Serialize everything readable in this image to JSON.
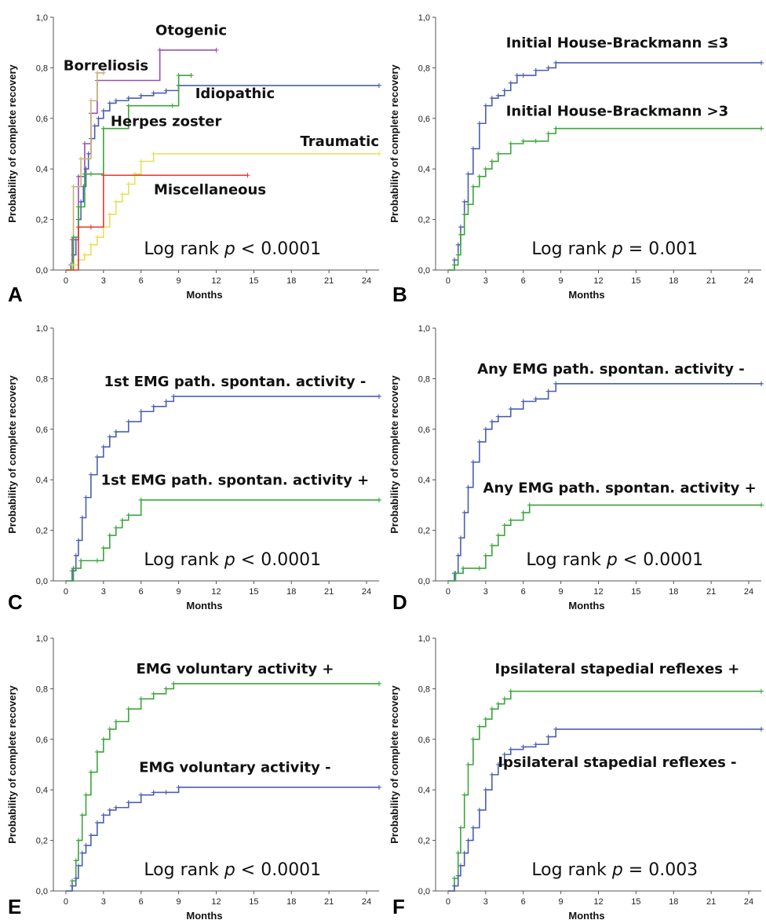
{
  "chart_data": [
    {
      "panel": "A",
      "type": "line",
      "xlabel": "Months",
      "ylabel": "Probability of complete recovery",
      "x_ticks": [
        "0",
        "3",
        "6",
        "9",
        "12",
        "15",
        "18",
        "21",
        "24"
      ],
      "y_ticks": [
        "0,0",
        "0,2",
        "0,4",
        "0,6",
        "0,8",
        "1,0"
      ],
      "xlim": [
        -1,
        25
      ],
      "ylim": [
        0,
        1
      ],
      "annotation": {
        "prefix": "Log rank ",
        "italic": "p",
        "suffix": " < 0.0001"
      },
      "series": [
        {
          "name": "Idiopathic",
          "color": "#4a5faf",
          "x": [
            0,
            0.4,
            0.6,
            0.8,
            1.0,
            1.2,
            1.4,
            1.6,
            1.8,
            2.0,
            2.3,
            2.6,
            3.0,
            3.5,
            4.0,
            5.0,
            6.0,
            7.0,
            8.0,
            9.0,
            25
          ],
          "y": [
            0,
            0.02,
            0.06,
            0.12,
            0.2,
            0.27,
            0.33,
            0.4,
            0.46,
            0.52,
            0.57,
            0.6,
            0.63,
            0.66,
            0.67,
            0.68,
            0.69,
            0.7,
            0.71,
            0.73,
            0.73
          ]
        },
        {
          "name": "Otogenic",
          "color": "#9a4fb0",
          "x": [
            0,
            0.5,
            1.0,
            1.5,
            2.0,
            2.5,
            7.5,
            12
          ],
          "y": [
            0,
            0.12,
            0.37,
            0.5,
            0.62,
            0.75,
            0.87,
            0.87
          ]
        },
        {
          "name": "Borreliosis",
          "color": "#c7b17a",
          "x": [
            0,
            0.6,
            1.2,
            2.0,
            2.5,
            3.0
          ],
          "y": [
            0,
            0.33,
            0.44,
            0.67,
            0.78,
            0.78
          ]
        },
        {
          "name": "Herpes zoster",
          "color": "#3ca43c",
          "x": [
            0,
            0.6,
            1.0,
            1.5,
            2.0,
            3.0,
            5.0,
            8.5,
            9.0,
            10
          ],
          "y": [
            0,
            0.13,
            0.25,
            0.38,
            0.38,
            0.56,
            0.65,
            0.65,
            0.77,
            0.77
          ]
        },
        {
          "name": "Traumatic",
          "color": "#e6e05a",
          "x": [
            0,
            0.5,
            1.0,
            1.5,
            2.0,
            2.5,
            3.0,
            3.5,
            4.0,
            4.5,
            5.0,
            5.5,
            6.0,
            7.0,
            25
          ],
          "y": [
            0,
            0.02,
            0.04,
            0.06,
            0.1,
            0.13,
            0.17,
            0.22,
            0.27,
            0.3,
            0.34,
            0.38,
            0.43,
            0.46,
            0.46
          ]
        },
        {
          "name": "Miscellaneous",
          "color": "#e23a2a",
          "x": [
            0,
            1.0,
            2.0,
            3.0,
            14.5
          ],
          "y": [
            0,
            0.17,
            0.17,
            0.375,
            0.375
          ]
        }
      ]
    },
    {
      "panel": "B",
      "type": "line",
      "xlabel": "Months",
      "ylabel": "Probability of complete recovery",
      "x_ticks": [
        "0",
        "3",
        "6",
        "9",
        "12",
        "15",
        "18",
        "21",
        "24"
      ],
      "y_ticks": [
        "0,0",
        "0,2",
        "0,4",
        "0,6",
        "0,8",
        "1,0"
      ],
      "xlim": [
        -1,
        25
      ],
      "ylim": [
        0,
        1
      ],
      "annotation": {
        "prefix": "Log rank ",
        "italic": "p",
        "suffix": " = 0.001"
      },
      "series": [
        {
          "name": "Initial House-Brackmann ≤3",
          "color": "#4a5faf",
          "x": [
            0,
            0.5,
            0.8,
            1.0,
            1.3,
            1.6,
            2.0,
            2.5,
            3.0,
            3.5,
            4.0,
            4.5,
            5.0,
            5.5,
            6.0,
            7.0,
            8.0,
            8.6,
            25
          ],
          "y": [
            0,
            0.04,
            0.1,
            0.17,
            0.27,
            0.38,
            0.48,
            0.58,
            0.65,
            0.68,
            0.69,
            0.71,
            0.74,
            0.77,
            0.77,
            0.79,
            0.8,
            0.82,
            0.82
          ]
        },
        {
          "name": "Initial House-Brackmann >3",
          "color": "#3ca43c",
          "x": [
            0,
            0.5,
            0.8,
            1.0,
            1.3,
            1.6,
            2.0,
            2.5,
            3.0,
            3.5,
            4.0,
            5.0,
            6.0,
            7.0,
            8.0,
            8.6,
            25
          ],
          "y": [
            0,
            0.02,
            0.06,
            0.14,
            0.22,
            0.26,
            0.33,
            0.37,
            0.4,
            0.43,
            0.46,
            0.5,
            0.51,
            0.51,
            0.54,
            0.56,
            0.56
          ]
        }
      ]
    },
    {
      "panel": "C",
      "type": "line",
      "xlabel": "Months",
      "ylabel": "Probability of complete recovery",
      "x_ticks": [
        "0",
        "3",
        "6",
        "9",
        "12",
        "15",
        "18",
        "21",
        "24"
      ],
      "y_ticks": [
        "0,0",
        "0,2",
        "0,4",
        "0,6",
        "0,8",
        "1,0"
      ],
      "xlim": [
        -1,
        25
      ],
      "ylim": [
        0,
        1
      ],
      "annotation": {
        "prefix": "Log rank ",
        "italic": "p",
        "suffix": " < 0.0001"
      },
      "series": [
        {
          "name": "1st EMG path. spontan. activity -",
          "color": "#4a5faf",
          "x": [
            0,
            0.5,
            0.8,
            1.0,
            1.3,
            1.6,
            2.0,
            2.5,
            3.0,
            3.5,
            4.0,
            5.0,
            6.0,
            7.0,
            8.0,
            8.6,
            25
          ],
          "y": [
            0,
            0.04,
            0.1,
            0.16,
            0.25,
            0.33,
            0.42,
            0.49,
            0.53,
            0.57,
            0.59,
            0.63,
            0.67,
            0.69,
            0.71,
            0.73,
            0.73
          ]
        },
        {
          "name": "1st EMG path. spontan. activity +",
          "color": "#3ca43c",
          "x": [
            0,
            0.6,
            1.2,
            2.5,
            3.0,
            3.5,
            4.0,
            4.5,
            5.0,
            6.0,
            25
          ],
          "y": [
            0,
            0.05,
            0.08,
            0.08,
            0.13,
            0.18,
            0.21,
            0.24,
            0.26,
            0.32,
            0.32
          ]
        }
      ]
    },
    {
      "panel": "D",
      "type": "line",
      "xlabel": "Months",
      "ylabel": "Probability of complete recovery",
      "x_ticks": [
        "0",
        "3",
        "6",
        "9",
        "12",
        "15",
        "18",
        "21",
        "24"
      ],
      "y_ticks": [
        "0,0",
        "0,2",
        "0,4",
        "0,6",
        "0,8",
        "1,0"
      ],
      "xlim": [
        -1,
        25
      ],
      "ylim": [
        0,
        1
      ],
      "annotation": {
        "prefix": "Log rank ",
        "italic": "p",
        "suffix": " < 0.0001"
      },
      "series": [
        {
          "name": "Any EMG path. spontan. activity -",
          "color": "#4a5faf",
          "x": [
            0,
            0.5,
            0.8,
            1.0,
            1.3,
            1.6,
            2.0,
            2.5,
            3.0,
            3.5,
            4.0,
            5.0,
            6.0,
            7.0,
            8.0,
            8.6,
            25
          ],
          "y": [
            0,
            0.03,
            0.1,
            0.17,
            0.27,
            0.37,
            0.47,
            0.55,
            0.6,
            0.63,
            0.65,
            0.68,
            0.71,
            0.72,
            0.75,
            0.78,
            0.78
          ]
        },
        {
          "name": "Any EMG path. spontan. activity +",
          "color": "#3ca43c",
          "x": [
            0,
            0.6,
            1.2,
            2.5,
            3.0,
            3.5,
            4.0,
            4.5,
            5.0,
            6.0,
            6.5,
            25
          ],
          "y": [
            0,
            0.03,
            0.05,
            0.05,
            0.1,
            0.14,
            0.18,
            0.22,
            0.24,
            0.27,
            0.3,
            0.3
          ]
        }
      ]
    },
    {
      "panel": "E",
      "type": "line",
      "xlabel": "Months",
      "ylabel": "Probability of complete recovery",
      "x_ticks": [
        "0",
        "3",
        "6",
        "9",
        "12",
        "15",
        "18",
        "21",
        "24"
      ],
      "y_ticks": [
        "0,0",
        "0,2",
        "0,4",
        "0,6",
        "0,8",
        "1,0"
      ],
      "xlim": [
        -1,
        25
      ],
      "ylim": [
        0,
        1
      ],
      "annotation": {
        "prefix": "Log rank ",
        "italic": "p",
        "suffix": " < 0.0001"
      },
      "series": [
        {
          "name": "EMG voluntary activity +",
          "color": "#3ca43c",
          "x": [
            0,
            0.5,
            0.8,
            1.0,
            1.3,
            1.6,
            2.0,
            2.5,
            3.0,
            3.5,
            4.0,
            5.0,
            6.0,
            7.0,
            8.0,
            8.6,
            25
          ],
          "y": [
            0,
            0.04,
            0.12,
            0.2,
            0.3,
            0.38,
            0.47,
            0.55,
            0.6,
            0.64,
            0.67,
            0.72,
            0.76,
            0.78,
            0.8,
            0.82,
            0.82
          ]
        },
        {
          "name": "EMG voluntary activity -",
          "color": "#4a5faf",
          "x": [
            0,
            0.5,
            0.8,
            1.0,
            1.3,
            1.6,
            2.0,
            2.5,
            3.0,
            3.5,
            4.0,
            5.0,
            6.0,
            7.0,
            8.0,
            9.0,
            25
          ],
          "y": [
            0,
            0.02,
            0.05,
            0.1,
            0.15,
            0.18,
            0.22,
            0.27,
            0.3,
            0.32,
            0.33,
            0.35,
            0.38,
            0.39,
            0.39,
            0.41,
            0.41
          ]
        }
      ]
    },
    {
      "panel": "F",
      "type": "line",
      "xlabel": "Months",
      "ylabel": "Probability of complete recovery",
      "x_ticks": [
        "0",
        "3",
        "6",
        "9",
        "12",
        "15",
        "18",
        "21",
        "24"
      ],
      "y_ticks": [
        "0,0",
        "0,2",
        "0,4",
        "0,6",
        "0,8",
        "1,0"
      ],
      "xlim": [
        -1,
        25
      ],
      "ylim": [
        0,
        1
      ],
      "annotation": {
        "prefix": "Log rank ",
        "italic": "p",
        "suffix": " = 0.003"
      },
      "series": [
        {
          "name": "Ipsilateral stapedial reflexes +",
          "color": "#3ca43c",
          "x": [
            0,
            0.5,
            0.8,
            1.0,
            1.3,
            1.6,
            2.0,
            2.5,
            3.0,
            3.5,
            4.0,
            4.5,
            5.0,
            25
          ],
          "y": [
            0,
            0.05,
            0.15,
            0.25,
            0.38,
            0.5,
            0.6,
            0.65,
            0.68,
            0.72,
            0.74,
            0.76,
            0.79,
            0.79
          ]
        },
        {
          "name": "Ipsilateral stapedial reflexes -",
          "color": "#4a5faf",
          "x": [
            0,
            0.5,
            0.8,
            1.0,
            1.3,
            1.6,
            2.0,
            2.5,
            3.0,
            3.5,
            4.0,
            4.5,
            5.0,
            6.0,
            7.0,
            8.0,
            8.6,
            25
          ],
          "y": [
            0,
            0.02,
            0.06,
            0.1,
            0.15,
            0.2,
            0.25,
            0.32,
            0.4,
            0.46,
            0.5,
            0.54,
            0.56,
            0.57,
            0.58,
            0.61,
            0.64,
            0.64
          ]
        }
      ]
    }
  ]
}
